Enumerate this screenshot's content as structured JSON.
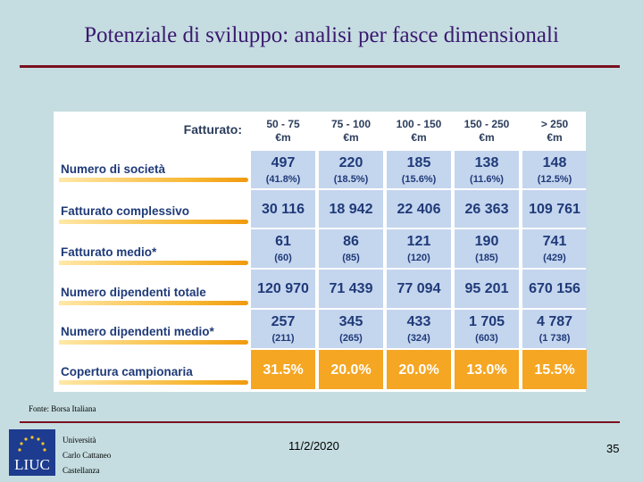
{
  "title": "Potenziale di sviluppo: analisi per fasce dimensionali",
  "table": {
    "header_label": "Fatturato:",
    "columns": [
      {
        "line1": "50 - 75",
        "line2": "€m"
      },
      {
        "line1": "75 - 100",
        "line2": "€m"
      },
      {
        "line1": "100 - 150",
        "line2": "€m"
      },
      {
        "line1": "150 - 250",
        "line2": "€m"
      },
      {
        "line1": "> 250",
        "line2": "€m"
      }
    ],
    "rows": [
      {
        "label": "Numero di società",
        "cells": [
          {
            "main": "497",
            "sub": "(41.8%)"
          },
          {
            "main": "220",
            "sub": "(18.5%)"
          },
          {
            "main": "185",
            "sub": "(15.6%)"
          },
          {
            "main": "138",
            "sub": "(11.6%)"
          },
          {
            "main": "148",
            "sub": "(12.5%)"
          }
        ]
      },
      {
        "label": "Fatturato complessivo",
        "cells": [
          {
            "main": "30 116",
            "sub": ""
          },
          {
            "main": "18 942",
            "sub": ""
          },
          {
            "main": "22 406",
            "sub": ""
          },
          {
            "main": "26 363",
            "sub": ""
          },
          {
            "main": "109 761",
            "sub": ""
          }
        ]
      },
      {
        "label": "Fatturato medio*",
        "cells": [
          {
            "main": "61",
            "sub": "(60)"
          },
          {
            "main": "86",
            "sub": "(85)"
          },
          {
            "main": "121",
            "sub": "(120)"
          },
          {
            "main": "190",
            "sub": "(185)"
          },
          {
            "main": "741",
            "sub": "(429)"
          }
        ]
      },
      {
        "label": "Numero dipendenti totale",
        "cells": [
          {
            "main": "120 970",
            "sub": ""
          },
          {
            "main": "71 439",
            "sub": ""
          },
          {
            "main": "77 094",
            "sub": ""
          },
          {
            "main": "95 201",
            "sub": ""
          },
          {
            "main": "670 156",
            "sub": ""
          }
        ]
      },
      {
        "label": "Numero dipendenti medio*",
        "cells": [
          {
            "main": "257",
            "sub": "(211)"
          },
          {
            "main": "345",
            "sub": "(265)"
          },
          {
            "main": "433",
            "sub": "(324)"
          },
          {
            "main": "1 705",
            "sub": "(603)"
          },
          {
            "main": "4 787",
            "sub": "(1 738)"
          }
        ]
      },
      {
        "label": "Copertura campionaria",
        "cells": [
          {
            "main": "31.5%",
            "sub": ""
          },
          {
            "main": "20.0%",
            "sub": ""
          },
          {
            "main": "20.0%",
            "sub": ""
          },
          {
            "main": "13.0%",
            "sub": ""
          },
          {
            "main": "15.5%",
            "sub": ""
          }
        ]
      }
    ]
  },
  "source": "Fonte: Borsa Italiana",
  "footer": {
    "logo_text": "LIUC",
    "university_lines": [
      "Università",
      "Carlo Cattaneo",
      "Castellanza"
    ],
    "date": "11/2/2020",
    "page_number": "35"
  },
  "colors": {
    "title": "#3a1870",
    "rule": "#7a1020",
    "background": "#c5dde0",
    "cell_blue": "#c4d5ee",
    "cell_orange": "#f5a623",
    "text_blue": "#1f3a78"
  }
}
